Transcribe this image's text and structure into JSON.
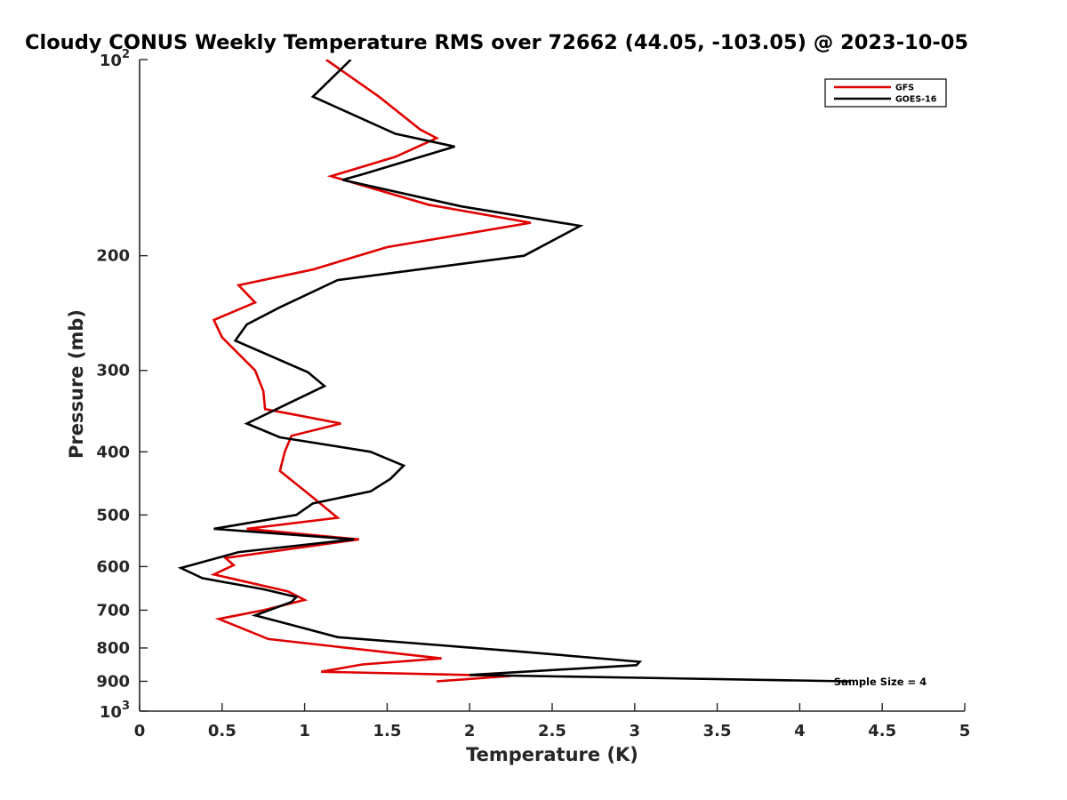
{
  "chart_data": {
    "type": "line",
    "title": "Cloudy CONUS Weekly Temperature RMS over 72662 (44.05, -103.05) @ 2023-10-05",
    "xlabel": "Temperature (K)",
    "ylabel": "Pressure (mb)",
    "xlim": [
      0,
      5
    ],
    "ylim": [
      100,
      1000
    ],
    "y_scale": "log",
    "y_reversed": true,
    "grid": false,
    "legend_position": "top-right",
    "x_ticks": [
      {
        "value": 0,
        "label": "0"
      },
      {
        "value": 0.5,
        "label": "0.5"
      },
      {
        "value": 1,
        "label": "1"
      },
      {
        "value": 1.5,
        "label": "1.5"
      },
      {
        "value": 2,
        "label": "2"
      },
      {
        "value": 2.5,
        "label": "2.5"
      },
      {
        "value": 3,
        "label": "3"
      },
      {
        "value": 3.5,
        "label": "3.5"
      },
      {
        "value": 4,
        "label": "4"
      },
      {
        "value": 4.5,
        "label": "4.5"
      },
      {
        "value": 5,
        "label": "5"
      }
    ],
    "y_ticks": [
      {
        "value": 100,
        "base": "10",
        "exp": "2"
      },
      {
        "value": 200,
        "label": "200"
      },
      {
        "value": 300,
        "label": "300"
      },
      {
        "value": 400,
        "label": "400"
      },
      {
        "value": 500,
        "label": "500"
      },
      {
        "value": 600,
        "label": "600"
      },
      {
        "value": 700,
        "label": "700"
      },
      {
        "value": 800,
        "label": "800"
      },
      {
        "value": 900,
        "label": "900"
      },
      {
        "value": 1000,
        "base": "10",
        "exp": "3"
      }
    ],
    "series": [
      {
        "name": "GFS",
        "color": "#e00000",
        "points": [
          [
            1.13,
            100
          ],
          [
            1.45,
            114
          ],
          [
            1.7,
            128
          ],
          [
            1.8,
            132
          ],
          [
            1.55,
            141
          ],
          [
            1.16,
            151
          ],
          [
            1.75,
            167
          ],
          [
            2.37,
            178
          ],
          [
            1.5,
            194
          ],
          [
            1.05,
            210
          ],
          [
            0.6,
            222
          ],
          [
            0.7,
            236
          ],
          [
            0.45,
            251
          ],
          [
            0.5,
            267
          ],
          [
            0.7,
            300
          ],
          [
            0.75,
            323
          ],
          [
            0.76,
            344
          ],
          [
            0.92,
            350
          ],
          [
            1.22,
            362
          ],
          [
            0.92,
            378
          ],
          [
            0.88,
            400
          ],
          [
            0.85,
            428
          ],
          [
            1.05,
            470
          ],
          [
            1.2,
            505
          ],
          [
            0.65,
            525
          ],
          [
            1.33,
            545
          ],
          [
            0.52,
            582
          ],
          [
            0.57,
            597
          ],
          [
            0.45,
            617
          ],
          [
            0.9,
            655
          ],
          [
            1.0,
            675
          ],
          [
            0.75,
            700
          ],
          [
            0.48,
            722
          ],
          [
            0.78,
            775
          ],
          [
            1.83,
            830
          ],
          [
            1.35,
            848
          ],
          [
            1.1,
            870
          ],
          [
            2.25,
            883
          ],
          [
            1.8,
            900
          ]
        ]
      },
      {
        "name": "GOES-16",
        "color": "#000000",
        "points": [
          [
            1.28,
            100
          ],
          [
            1.05,
            114
          ],
          [
            1.55,
            130
          ],
          [
            1.91,
            136
          ],
          [
            1.35,
            150
          ],
          [
            1.23,
            153
          ],
          [
            1.95,
            168
          ],
          [
            2.67,
            180
          ],
          [
            2.33,
            200
          ],
          [
            1.2,
            218
          ],
          [
            0.85,
            240
          ],
          [
            0.65,
            255
          ],
          [
            0.58,
            270
          ],
          [
            1.02,
            302
          ],
          [
            1.12,
            317
          ],
          [
            0.85,
            342
          ],
          [
            0.65,
            362
          ],
          [
            0.85,
            380
          ],
          [
            1.4,
            400
          ],
          [
            1.6,
            420
          ],
          [
            1.52,
            440
          ],
          [
            1.4,
            460
          ],
          [
            1.05,
            480
          ],
          [
            0.95,
            500
          ],
          [
            0.45,
            525
          ],
          [
            1.3,
            545
          ],
          [
            0.6,
            570
          ],
          [
            0.25,
            603
          ],
          [
            0.38,
            625
          ],
          [
            0.75,
            650
          ],
          [
            0.95,
            668
          ],
          [
            0.92,
            680
          ],
          [
            0.7,
            713
          ],
          [
            0.9,
            735
          ],
          [
            1.2,
            770
          ],
          [
            2.3,
            810
          ],
          [
            3.03,
            840
          ],
          [
            3.01,
            850
          ],
          [
            2.0,
            880
          ],
          [
            4.3,
            900
          ]
        ]
      }
    ],
    "legend": [
      "GFS",
      "GOES-16"
    ],
    "annotations": [
      {
        "text": "Sample Size = 4",
        "x": 4.25,
        "y": 900
      }
    ]
  }
}
